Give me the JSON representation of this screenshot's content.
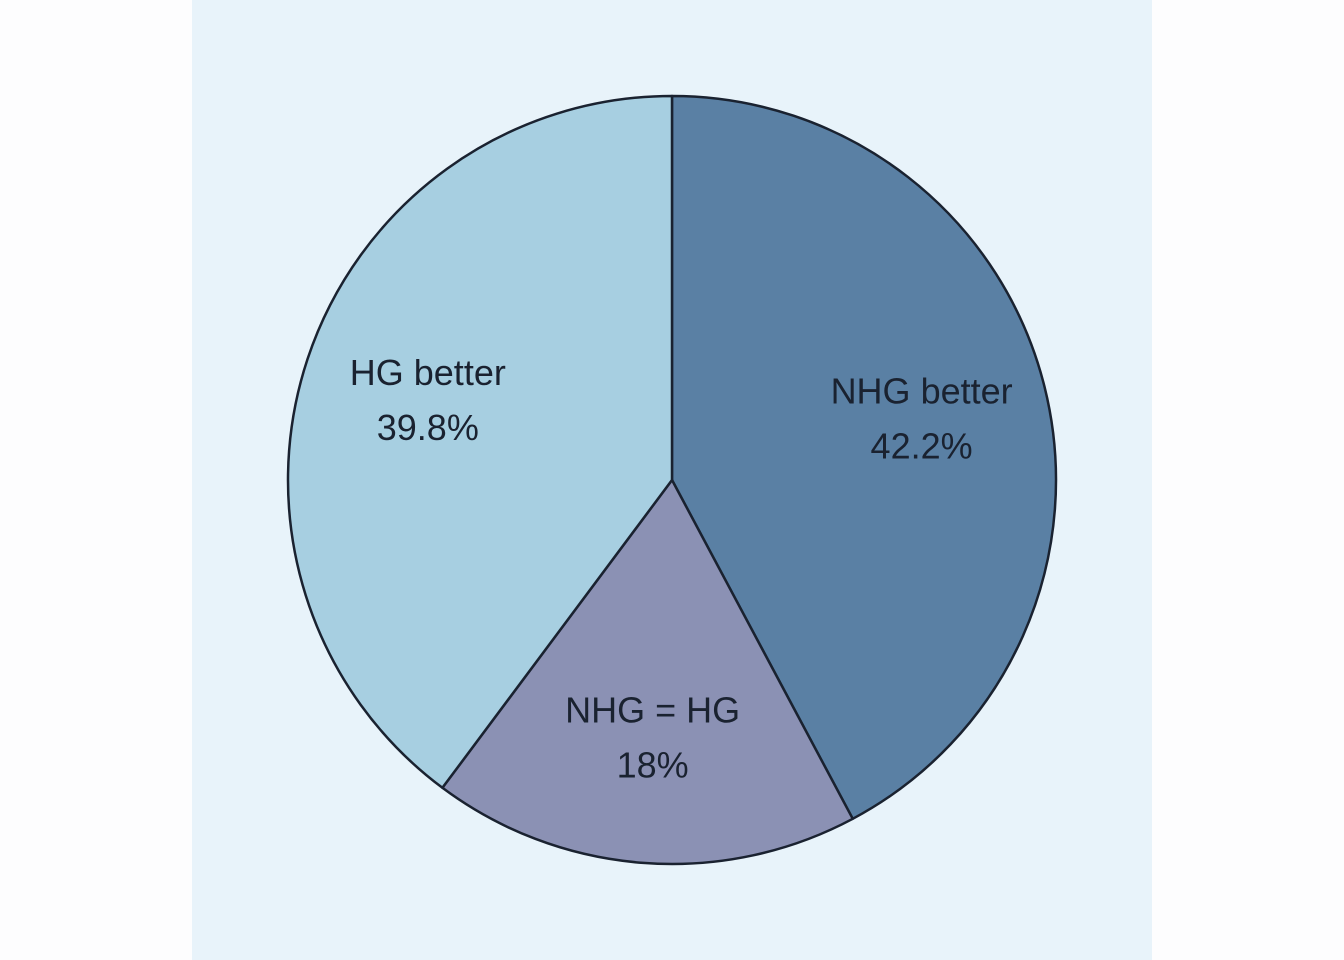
{
  "chart_data": {
    "type": "pie",
    "title": "",
    "start_angle_deg": 0,
    "direction": "clockwise",
    "grid": false,
    "legend": "none",
    "slices": [
      {
        "label": "NHG better",
        "value": 42.2,
        "value_label": "42.2%",
        "color": "#5a80a4"
      },
      {
        "label": "NHG = HG",
        "value": 18,
        "value_label": "18%",
        "color": "#8b91b4"
      },
      {
        "label": "HG better",
        "value": 39.8,
        "value_label": "39.8%",
        "color": "#a7cfe1"
      }
    ]
  },
  "colors": {
    "panel_background": "#e8f3fa",
    "page_background": "#fdfdfe",
    "outline": "#1a2230"
  }
}
